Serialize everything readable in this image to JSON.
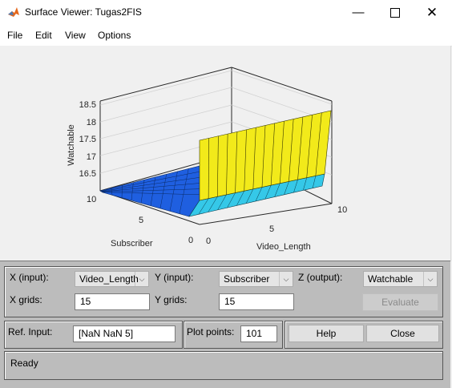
{
  "window": {
    "title": "Surface Viewer: Tugas2FIS"
  },
  "menu": [
    "File",
    "Edit",
    "View",
    "Options"
  ],
  "plot": {
    "zlabel": "Watchable",
    "xlabel": "Video_Length",
    "ylabel": "Subscriber",
    "zticks": [
      "18.5",
      "18",
      "17.5",
      "17",
      "16.5"
    ],
    "xticks": [
      "0",
      "5",
      "10"
    ],
    "yticks": [
      "10",
      "5",
      "0"
    ]
  },
  "controls": {
    "x_input_label": "X (input):",
    "x_input_value": "Video_Length",
    "y_input_label": "Y (input):",
    "y_input_value": "Subscriber",
    "z_output_label": "Z (output):",
    "z_output_value": "Watchable",
    "x_grids_label": "X grids:",
    "x_grids_value": "15",
    "y_grids_label": "Y grids:",
    "y_grids_value": "15",
    "evaluate_label": "Evaluate",
    "ref_input_label": "Ref. Input:",
    "ref_input_value": "[NaN NaN 5]",
    "plot_points_label": "Plot points:",
    "plot_points_value": "101",
    "help_label": "Help",
    "close_label": "Close",
    "status": "Ready"
  }
}
